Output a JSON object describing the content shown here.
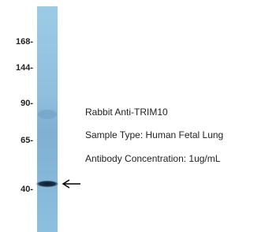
{
  "markers": [
    "168-",
    "144-",
    "90-",
    "65-",
    "40-"
  ],
  "description": [
    "Rabbit Anti-TRIM10",
    "Sample Type: Human Fetal Lung",
    "Antibody Concentration: 1ug/mL"
  ]
}
